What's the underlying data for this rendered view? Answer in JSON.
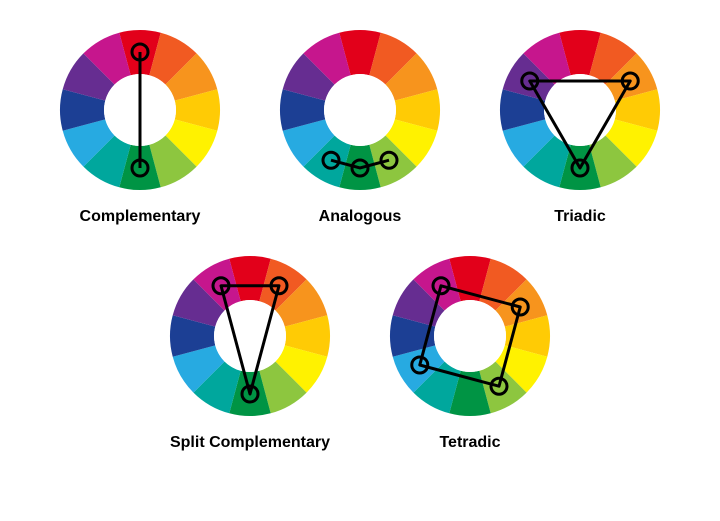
{
  "wheel": {
    "colors": [
      "#e2001a",
      "#f15a22",
      "#f7941d",
      "#ffcb05",
      "#fff200",
      "#8dc63f",
      "#009444",
      "#00a79d",
      "#27aae1",
      "#1c3f94",
      "#662d91",
      "#c6168d"
    ],
    "outer_radius": 80,
    "inner_radius": 36,
    "size": 180,
    "start_angle_deg": -105,
    "node_radius": 58,
    "marker_r": 8,
    "stroke": "#000000",
    "stroke_width": 3,
    "background": "#ffffff"
  },
  "schemes": [
    {
      "label": "Complementary",
      "nodes": [
        0,
        6
      ]
    },
    {
      "label": "Analogous",
      "nodes": [
        5,
        6,
        7
      ]
    },
    {
      "label": "Triadic",
      "nodes": [
        2,
        6,
        10
      ]
    },
    {
      "label": "Split Complementary",
      "nodes": [
        11,
        1,
        6
      ]
    },
    {
      "label": "Tetradic",
      "nodes": [
        11,
        2,
        5,
        8
      ]
    }
  ],
  "layout": {
    "rows": [
      [
        0,
        1,
        2
      ],
      [
        3,
        4
      ]
    ]
  }
}
